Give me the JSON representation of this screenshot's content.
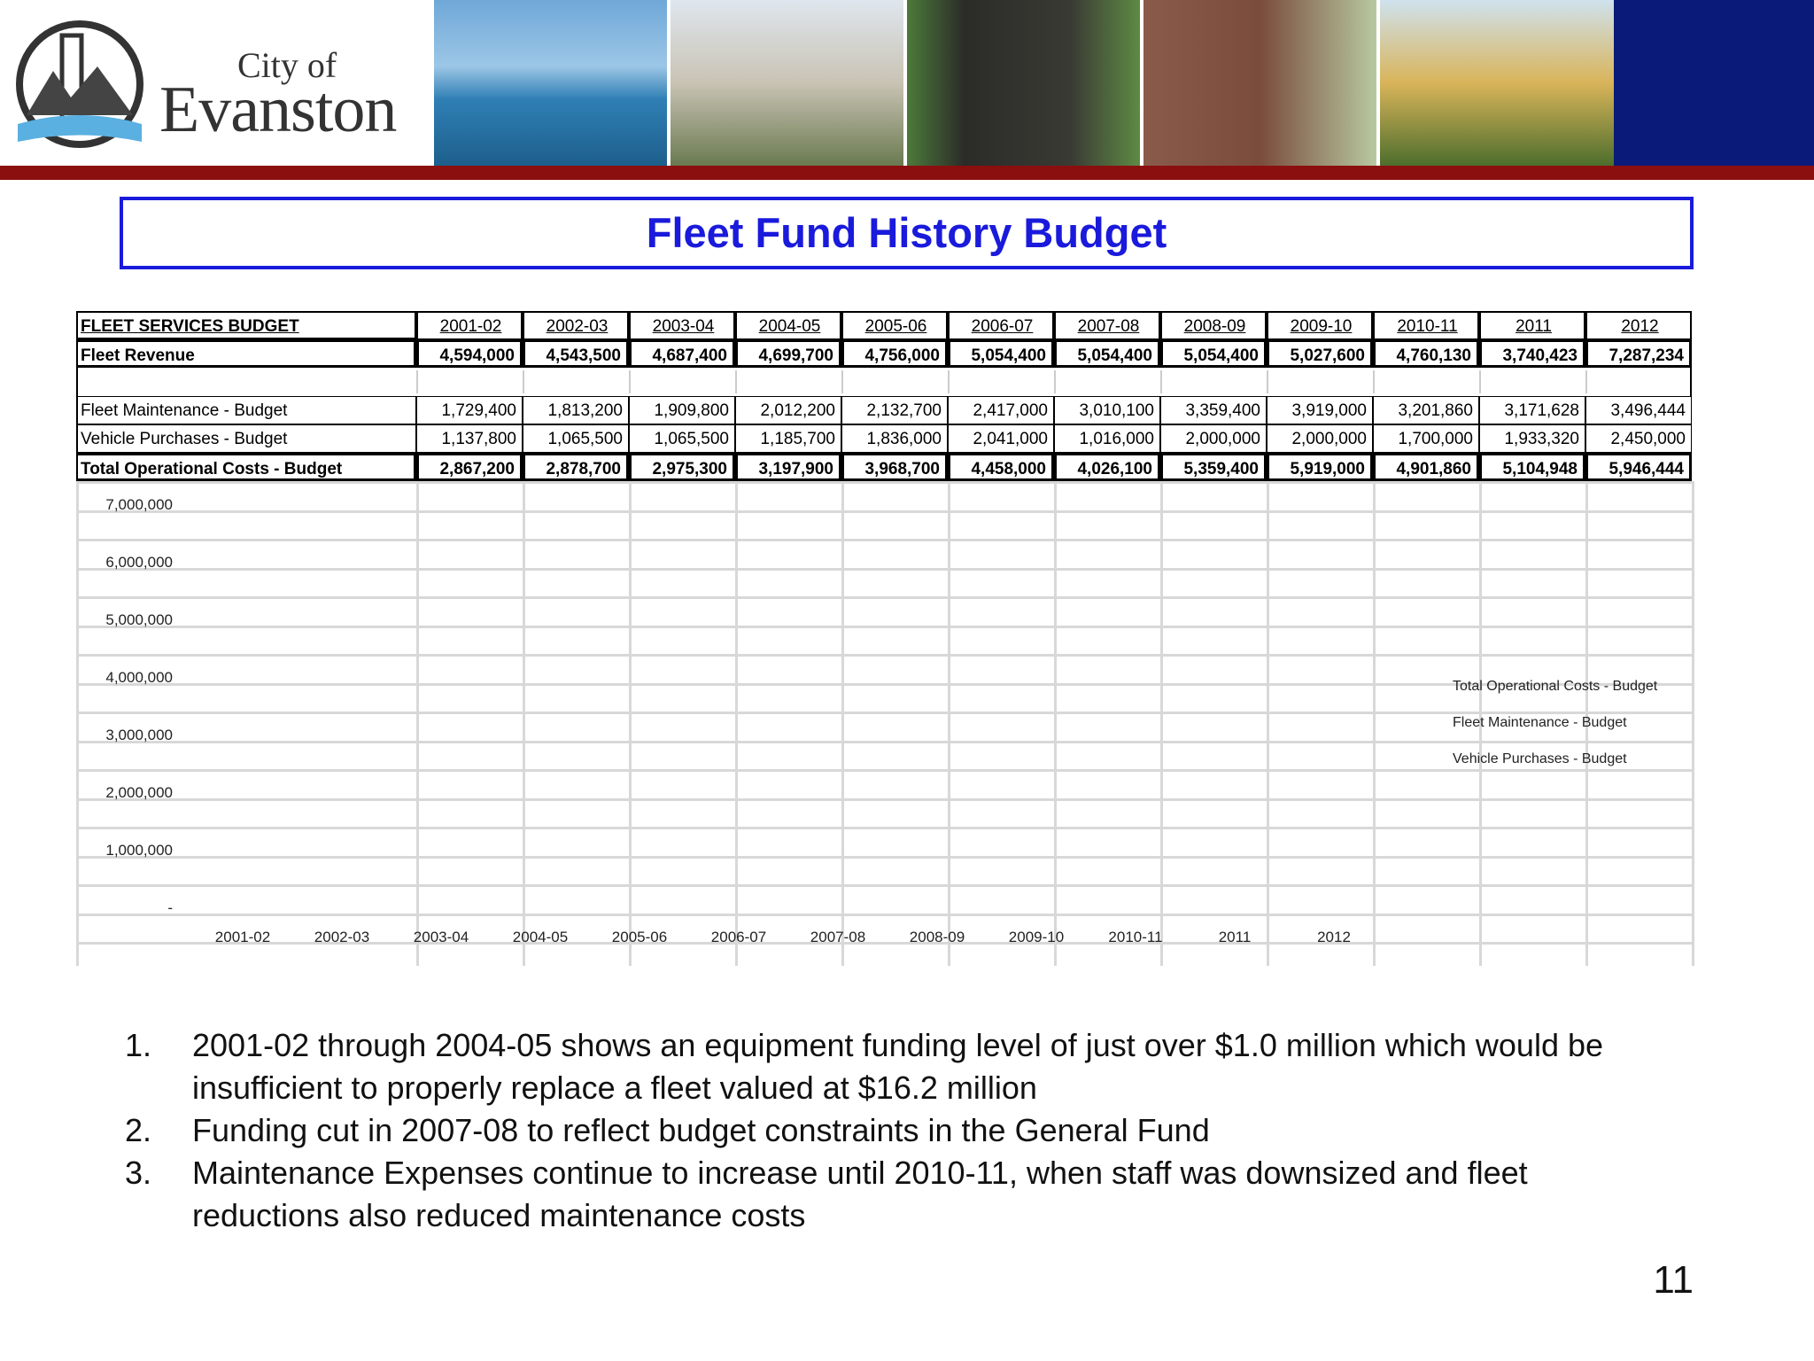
{
  "header": {
    "logo_small": "City of",
    "logo_large": "Evanston"
  },
  "title": "Fleet Fund History Budget",
  "table": {
    "header": [
      "FLEET SERVICES BUDGET",
      "2001-02",
      "2002-03",
      "2003-04",
      "2004-05",
      "2005-06",
      "2006-07",
      "2007-08",
      "2008-09",
      "2009-10",
      "2010-11",
      "2011",
      "2012"
    ],
    "rows": [
      {
        "label": "Fleet Revenue",
        "values": [
          "4,594,000",
          "4,543,500",
          "4,687,400",
          "4,699,700",
          "4,756,000",
          "5,054,400",
          "5,054,400",
          "5,054,400",
          "5,027,600",
          "4,760,130",
          "3,740,423",
          "7,287,234"
        ]
      },
      {
        "label": "Fleet Maintenance - Budget",
        "values": [
          "1,729,400",
          "1,813,200",
          "1,909,800",
          "2,012,200",
          "2,132,700",
          "2,417,000",
          "3,010,100",
          "3,359,400",
          "3,919,000",
          "3,201,860",
          "3,171,628",
          "3,496,444"
        ]
      },
      {
        "label": "Vehicle Purchases - Budget",
        "values": [
          "1,137,800",
          "1,065,500",
          "1,065,500",
          "1,185,700",
          "1,836,000",
          "2,041,000",
          "1,016,000",
          "2,000,000",
          "2,000,000",
          "1,700,000",
          "1,933,320",
          "2,450,000"
        ]
      },
      {
        "label": "Total Operational Costs - Budget",
        "values": [
          "2,867,200",
          "2,878,700",
          "2,975,300",
          "3,197,900",
          "3,968,700",
          "4,458,000",
          "4,026,100",
          "5,359,400",
          "5,919,000",
          "4,901,860",
          "5,104,948",
          "5,946,444"
        ]
      }
    ]
  },
  "chart": {
    "y_labels": [
      "7,000,000",
      "6,000,000",
      "5,000,000",
      "4,000,000",
      "3,000,000",
      "2,000,000",
      "1,000,000",
      "-"
    ],
    "x_labels": [
      "2001-02",
      "2002-03",
      "2003-04",
      "2004-05",
      "2005-06",
      "2006-07",
      "2007-08",
      "2008-09",
      "2009-10",
      "2010-11",
      "2011",
      "2012"
    ],
    "legend": [
      "Total Operational Costs - Budget",
      "Fleet Maintenance - Budget",
      "Vehicle Purchases - Budget"
    ]
  },
  "notes": [
    "2001-02 through 2004-05 shows an equipment funding level of just over $1.0 million which would be insufficient to properly replace a fleet valued at $16.2 million",
    "Funding cut in 2007-08 to reflect budget constraints in the General Fund",
    "Maintenance Expenses continue to increase until 2010-11, when staff was downsized and fleet reductions also reduced maintenance costs"
  ],
  "page_number": "11"
}
